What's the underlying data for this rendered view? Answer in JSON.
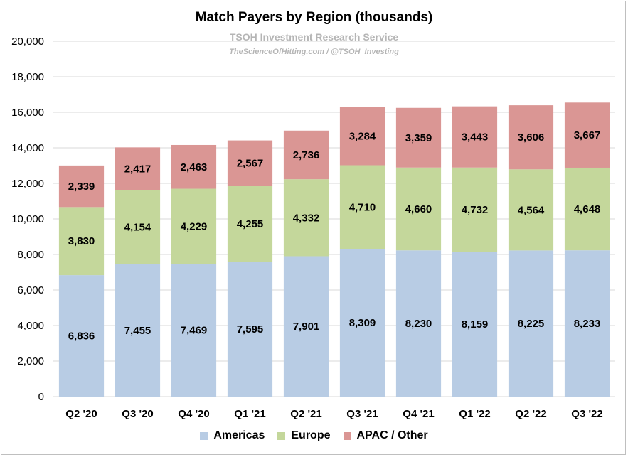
{
  "chart_data": {
    "type": "bar",
    "stacked": true,
    "title": "Match Payers by Region (thousands)",
    "watermark_line1": "TSOH Investment Research Service",
    "watermark_line2": "TheScienceOfHitting.com / @TSOH_Investing",
    "categories": [
      "Q2 '20",
      "Q3 '20",
      "Q4 '20",
      "Q1 '21",
      "Q2 '21",
      "Q3 '21",
      "Q4 '21",
      "Q1 '22",
      "Q2 '22",
      "Q3 '22"
    ],
    "series": [
      {
        "name": "Americas",
        "color": "#b8cce4",
        "values": [
          6836,
          7455,
          7469,
          7595,
          7901,
          8309,
          8230,
          8159,
          8225,
          8233
        ]
      },
      {
        "name": "Europe",
        "color": "#c4d79b",
        "values": [
          3830,
          4154,
          4229,
          4255,
          4332,
          4710,
          4660,
          4732,
          4564,
          4648
        ]
      },
      {
        "name": "APAC / Other",
        "color": "#da9694",
        "values": [
          2339,
          2417,
          2463,
          2567,
          2736,
          3284,
          3359,
          3443,
          3606,
          3667
        ]
      }
    ],
    "value_labels": [
      [
        "6,836",
        "7,455",
        "7,469",
        "7,595",
        "7,901",
        "8,309",
        "8,230",
        "8,159",
        "8,225",
        "8,233"
      ],
      [
        "3,830",
        "4,154",
        "4,229",
        "4,255",
        "4,332",
        "4,710",
        "4,660",
        "4,732",
        "4,564",
        "4,648"
      ],
      [
        "2,339",
        "2,417",
        "2,463",
        "2,567",
        "2,736",
        "3,284",
        "3,359",
        "3,443",
        "3,606",
        "3,667"
      ]
    ],
    "ylim": [
      0,
      20000
    ],
    "yticks": [
      0,
      2000,
      4000,
      6000,
      8000,
      10000,
      12000,
      14000,
      16000,
      18000,
      20000
    ],
    "ytick_labels": [
      "0",
      "2,000",
      "4,000",
      "6,000",
      "8,000",
      "10,000",
      "12,000",
      "14,000",
      "16,000",
      "18,000",
      "20,000"
    ],
    "xlabel": "",
    "ylabel": "",
    "grid": true,
    "legend_position": "bottom"
  }
}
